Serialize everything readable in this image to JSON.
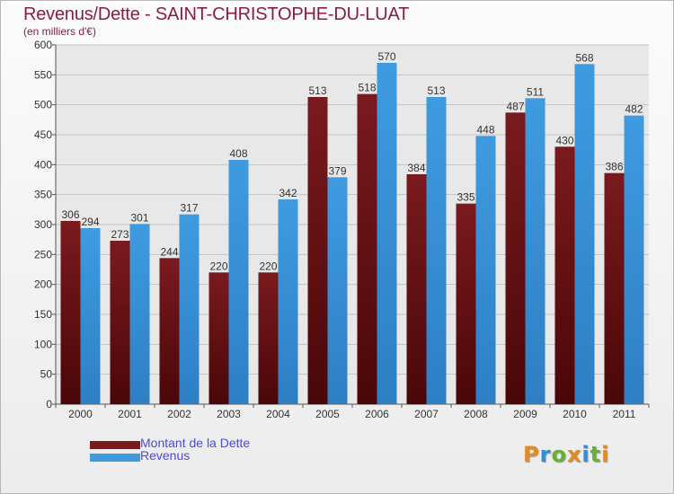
{
  "header": {
    "title": "Revenus/Dette - SAINT-CHRISTOPHE-DU-LUAT",
    "subtitle": "(en milliers d'€)"
  },
  "colors": {
    "dette": "#7a1a1e",
    "revenus": "#3f9be0",
    "title": "#8a1d3f",
    "legend_text": "#4a4ae0"
  },
  "chart_data": {
    "type": "bar",
    "title": "Revenus/Dette - SAINT-CHRISTOPHE-DU-LUAT",
    "subtitle": "(en milliers d'€)",
    "xlabel": "",
    "ylabel": "",
    "categories": [
      "2000",
      "2001",
      "2002",
      "2003",
      "2004",
      "2005",
      "2006",
      "2007",
      "2008",
      "2009",
      "2010",
      "2011"
    ],
    "series": [
      {
        "name": "Montant de la Dette",
        "color": "#7a1a1e",
        "values": [
          306,
          273,
          244,
          220,
          220,
          513,
          518,
          384,
          335,
          487,
          430,
          386
        ]
      },
      {
        "name": "Revenus",
        "color": "#3f9be0",
        "values": [
          294,
          301,
          317,
          408,
          342,
          379,
          570,
          513,
          448,
          511,
          568,
          482
        ]
      }
    ],
    "ylim": [
      0,
      600
    ],
    "yticks": [
      0,
      50,
      100,
      150,
      200,
      250,
      300,
      350,
      400,
      450,
      500,
      550,
      600
    ],
    "grid": true,
    "legend": "bottom-left"
  },
  "legend": {
    "items": [
      {
        "label": "Montant de la Dette",
        "color": "#7a1a1e"
      },
      {
        "label": "Revenus",
        "color": "#3f9be0"
      }
    ]
  },
  "logo": {
    "letters": [
      "P",
      "r",
      "o",
      "x",
      "i",
      "t",
      "i"
    ],
    "colors": [
      "#e8891c",
      "#2f8fd8",
      "#66b232",
      "#e8891c",
      "#2f8fd8",
      "#66b232",
      "#e8891c"
    ]
  }
}
